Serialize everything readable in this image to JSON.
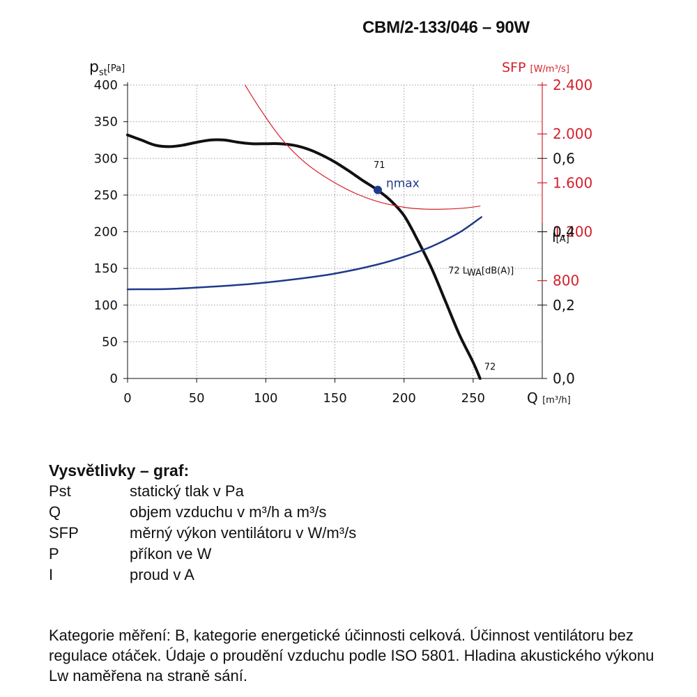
{
  "title": "CBM/2-133/046 – 90W",
  "chart_data": {
    "type": "line",
    "axes": {
      "y_left": {
        "label_main": "p",
        "label_sub": "st",
        "label_unit": "[Pa]",
        "range": [
          0,
          400
        ],
        "ticks": [
          "0",
          "50",
          "100",
          "150",
          "200",
          "250",
          "300",
          "350",
          "400"
        ]
      },
      "x": {
        "label_main": "Q",
        "label_unit": "[m³/h]",
        "range": [
          0,
          300
        ],
        "ticks": [
          "0",
          "50",
          "100",
          "150",
          "200",
          "250"
        ]
      },
      "y_sfp": {
        "label": "SFP",
        "label_unit": "[W/m³/s]",
        "range": [
          0,
          2400
        ],
        "ticks": [
          "800",
          "1.200",
          "1.600",
          "2.000",
          "2.400"
        ],
        "color": "#d4202a"
      },
      "y_current": {
        "label": "I",
        "label_unit": "[A]",
        "range": [
          0,
          0.8
        ],
        "ticks": [
          "0,0",
          "0,2",
          "0,4",
          "0,6"
        ]
      }
    },
    "grid": true,
    "series": [
      {
        "key": "pressure",
        "axis": "y_left",
        "color": "#111111",
        "points": [
          [
            0,
            332
          ],
          [
            10,
            325
          ],
          [
            20,
            318
          ],
          [
            30,
            316
          ],
          [
            40,
            318
          ],
          [
            50,
            322
          ],
          [
            60,
            325
          ],
          [
            70,
            325
          ],
          [
            80,
            322
          ],
          [
            90,
            320
          ],
          [
            100,
            320
          ],
          [
            110,
            320
          ],
          [
            120,
            318
          ],
          [
            130,
            313
          ],
          [
            140,
            305
          ],
          [
            150,
            295
          ],
          [
            160,
            283
          ],
          [
            170,
            270
          ],
          [
            180,
            258
          ],
          [
            190,
            243
          ],
          [
            200,
            222
          ],
          [
            210,
            188
          ],
          [
            220,
            150
          ],
          [
            230,
            105
          ],
          [
            240,
            60
          ],
          [
            250,
            22
          ],
          [
            255,
            0
          ]
        ]
      },
      {
        "key": "sfp",
        "axis": "y_sfp",
        "color": "#d4202a",
        "points": [
          [
            85,
            2400
          ],
          [
            95,
            2220
          ],
          [
            110,
            1980
          ],
          [
            125,
            1800
          ],
          [
            140,
            1670
          ],
          [
            160,
            1540
          ],
          [
            180,
            1450
          ],
          [
            200,
            1400
          ],
          [
            215,
            1385
          ],
          [
            230,
            1385
          ],
          [
            245,
            1395
          ],
          [
            255,
            1410
          ]
        ]
      },
      {
        "key": "current",
        "axis": "y_current",
        "color": "#1f3a8a",
        "points": [
          [
            0,
            0.243
          ],
          [
            30,
            0.244
          ],
          [
            60,
            0.25
          ],
          [
            90,
            0.258
          ],
          [
            120,
            0.27
          ],
          [
            150,
            0.286
          ],
          [
            180,
            0.31
          ],
          [
            200,
            0.332
          ],
          [
            220,
            0.36
          ],
          [
            240,
            0.398
          ],
          [
            256,
            0.44
          ]
        ]
      }
    ],
    "marker": {
      "label": "ηmax",
      "x": 181,
      "y": 257,
      "color": "#1f3a8a"
    },
    "annotations": [
      {
        "text": "71",
        "x": 178,
        "y": 287
      },
      {
        "text": "72 L",
        "sub": "WA",
        "text2": "[dB(A)]",
        "x": 232,
        "y": 143
      },
      {
        "text": "72",
        "x": 258,
        "y": 12
      }
    ]
  },
  "legend": {
    "heading": "Vysvětlivky – graf:",
    "rows": [
      {
        "key": "Pst",
        "desc": "statický tlak v Pa"
      },
      {
        "key": "Q",
        "desc": "objem vzduchu v m³/h a m³/s"
      },
      {
        "key": "SFP",
        "desc": "měrný výkon ventilátoru v W/m³/s"
      },
      {
        "key": "P",
        "desc": "příkon ve W"
      },
      {
        "key": "I",
        "desc": "proud v A"
      }
    ]
  },
  "note": "Kategorie měření: B, kategorie energetické účinnosti celková. Účinnost ventilátoru bez regulace otáček. Údaje o proudění vzduchu podle ISO 5801. Hladina akustického výkonu Lw naměřena na straně sání."
}
